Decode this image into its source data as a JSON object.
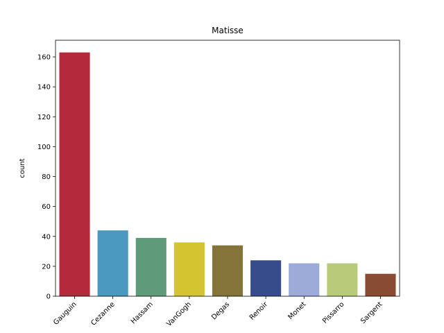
{
  "chart_data": {
    "type": "bar",
    "title": "Matisse",
    "xlabel": "",
    "ylabel": "count",
    "categories": [
      "Gauguin",
      "Cezanne",
      "Hassam",
      "VanGogh",
      "Degas",
      "Renoir",
      "Monet",
      "Pissarro",
      "Sargent"
    ],
    "values": [
      163,
      44,
      39,
      36,
      34,
      24,
      22,
      22,
      15
    ],
    "colors": [
      "#b22a3c",
      "#4b99bf",
      "#5f9a7a",
      "#d4c530",
      "#83743a",
      "#374c8a",
      "#9dabd8",
      "#b8cb7a",
      "#894b33"
    ],
    "ylim": [
      0,
      171.15
    ],
    "yticks": [
      0,
      20,
      40,
      60,
      80,
      100,
      120,
      140,
      160
    ],
    "grid": false,
    "legend": "none"
  }
}
